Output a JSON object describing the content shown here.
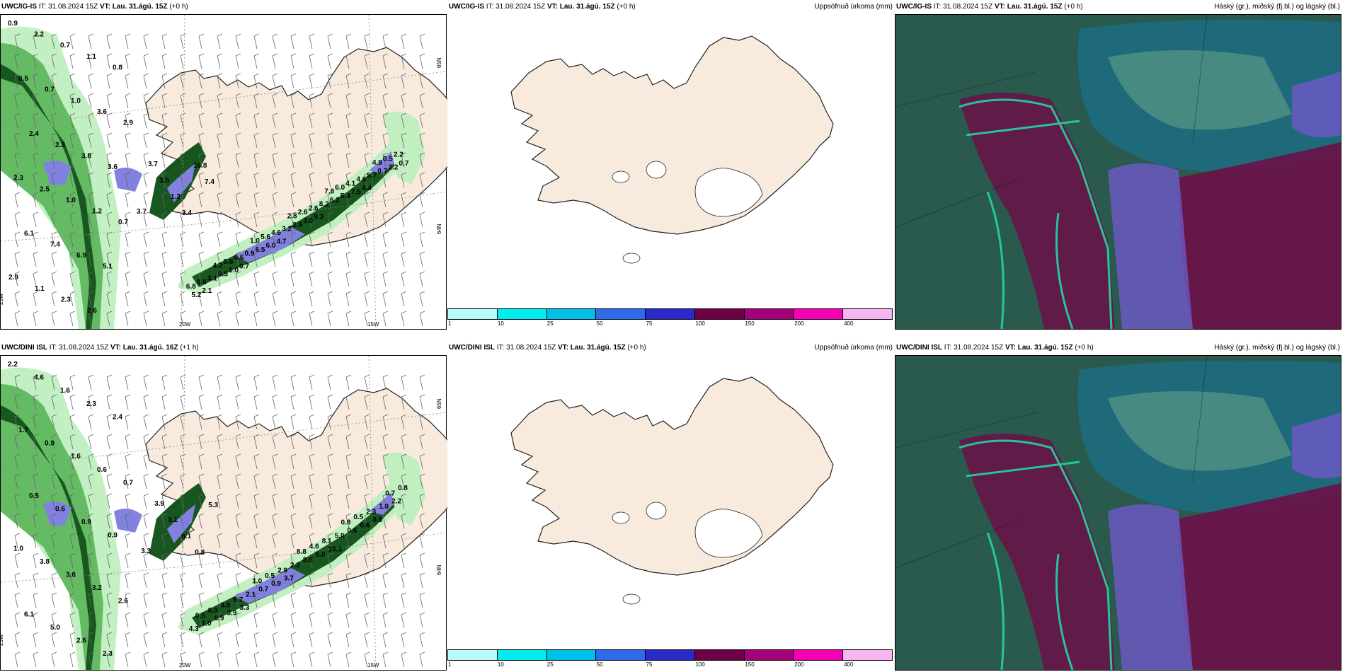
{
  "rows": [
    {
      "precip_panel": {
        "model": "UWC/IG-IS",
        "it": "IT: 31.08.2024 15Z",
        "vt": "VT: Lau. 31.ágú. 15Z",
        "lead": "(+0 h)",
        "labels": [
          "0.9",
          "2.2",
          "0.7",
          "1.1",
          "0.8",
          "0.5",
          "0.7",
          "1.0",
          "3.6",
          "2.9",
          "2.4",
          "2.3",
          "3.8",
          "3.6",
          "2.3",
          "2.5",
          "1.0",
          "1.2",
          "0.7",
          "6.1",
          "7.4",
          "6.9",
          "5.1",
          "2.9",
          "1.1",
          "2.3",
          "2.6",
          "3.7",
          "3.7",
          "3.5",
          "1.2",
          "3.4",
          "16.8",
          "7.4",
          "6.8",
          "5.2",
          "0.6",
          "2.1",
          "3.1",
          "4.2",
          "0.5",
          "0.6",
          "1.0",
          "0.6",
          "0.7",
          "0.9",
          "1.0",
          "6.5",
          "5.6",
          "6.0",
          "4.6",
          "4.7",
          "3.2",
          "2.8",
          "2.9",
          "2.6",
          "3.0",
          "2.6",
          "9.3",
          "8.2",
          "7.8",
          "6.2",
          "6.0",
          "5.4",
          "4.1",
          "7.5",
          "4.6",
          "4.4",
          "5.7",
          "4.9",
          "0.7",
          "0.5",
          "2.2",
          "2.2",
          "0.7"
        ],
        "ticks": {
          "lon_25w": "25W",
          "lon_20w": "20W",
          "lon_15w": "15W",
          "lat_64n": "64N",
          "lat_65n": "65N"
        }
      },
      "accum_panel": {
        "model": "UWC/IG-IS",
        "it": "IT: 31.08.2024 15Z",
        "vt": "VT: Lau. 31.ágú. 15Z",
        "lead": "(+0 h)",
        "title": "Uppsöfnuð úrkoma (mm)"
      },
      "cloud_panel": {
        "model": "UWC/IG-IS",
        "it": "IT: 31.08.2024 15Z",
        "vt": "VT: Lau. 31.ágú. 15Z",
        "lead": "(+0 h)",
        "title": "Háský (gr.), miðský (fj.bl.) og lágský (bl.)"
      }
    },
    {
      "precip_panel": {
        "model": "UWC/DINI ISL",
        "it": "IT: 31.08.2024 15Z",
        "vt": "VT: Lau. 31.ágú. 16Z",
        "lead": "(+1 h)",
        "labels": [
          "2.2",
          "4.6",
          "1.6",
          "2.3",
          "2.4",
          "1.7",
          "0.9",
          "1.6",
          "0.6",
          "0.7",
          "0.5",
          "0.6",
          "0.9",
          "0.9",
          "1.0",
          "3.8",
          "3.6",
          "3.2",
          "2.6",
          "6.1",
          "5.0",
          "2.6",
          "2.3",
          "3.3",
          "3.9",
          "3.1",
          "6.1",
          "0.8",
          "5.3",
          "4.3",
          "0.5",
          "1.0",
          "0.9",
          "0.9",
          "3.5",
          "3.9",
          "6.7",
          "3.3",
          "2.1",
          "1.0",
          "0.7",
          "0.5",
          "0.9",
          "2.9",
          "3.7",
          "2.2",
          "8.8",
          "8.8",
          "4.6",
          "5.0",
          "8.1",
          "10.1",
          "5.0",
          "0.8",
          "0.6",
          "0.5",
          "0.6",
          "2.3",
          "0.9",
          "1.0",
          "0.7",
          "2.2",
          "0.8"
        ],
        "ticks": {
          "lon_25w": "25W",
          "lon_20w": "20W",
          "lon_15w": "15W",
          "lat_64n": "64N",
          "lat_65n": "65N"
        }
      },
      "accum_panel": {
        "model": "UWC/DINI ISL",
        "it": "IT: 31.08.2024 15Z",
        "vt": "VT: Lau. 31.ágú. 15Z",
        "lead": "(+0 h)",
        "title": "Uppsöfnuð úrkoma (mm)"
      },
      "cloud_panel": {
        "model": "UWC/DINI ISL",
        "it": "IT: 31.08.2024 15Z",
        "vt": "VT: Lau. 31.ágú. 15Z",
        "lead": "(+0 h)",
        "title": "Háský (gr.), miðský (fj.bl.) og lágský (bl.)"
      }
    }
  ],
  "legend": {
    "ticks": [
      "1",
      "10",
      "25",
      "50",
      "75",
      "100",
      "150",
      "200",
      "400"
    ],
    "colors": [
      "#b9fbfb",
      "#00eded",
      "#00c0ea",
      "#2d6bea",
      "#2a2ac8",
      "#6e0046",
      "#a3007a",
      "#f500b5",
      "#f7b5f1"
    ]
  },
  "colors": {
    "land": "#f8ebdd",
    "precip_light": "#bff0bf",
    "precip_mid": "#5cb85c",
    "precip_dark": "#0c4f14",
    "precip_heavy": "#7b7bde",
    "cloud_low": "#2a5a4d",
    "cloud_mid": "#1e6b80",
    "cloud_high": "#6b1148",
    "cloud_edge": "#22d6a0",
    "cloud_purple": "#6f57c8"
  }
}
